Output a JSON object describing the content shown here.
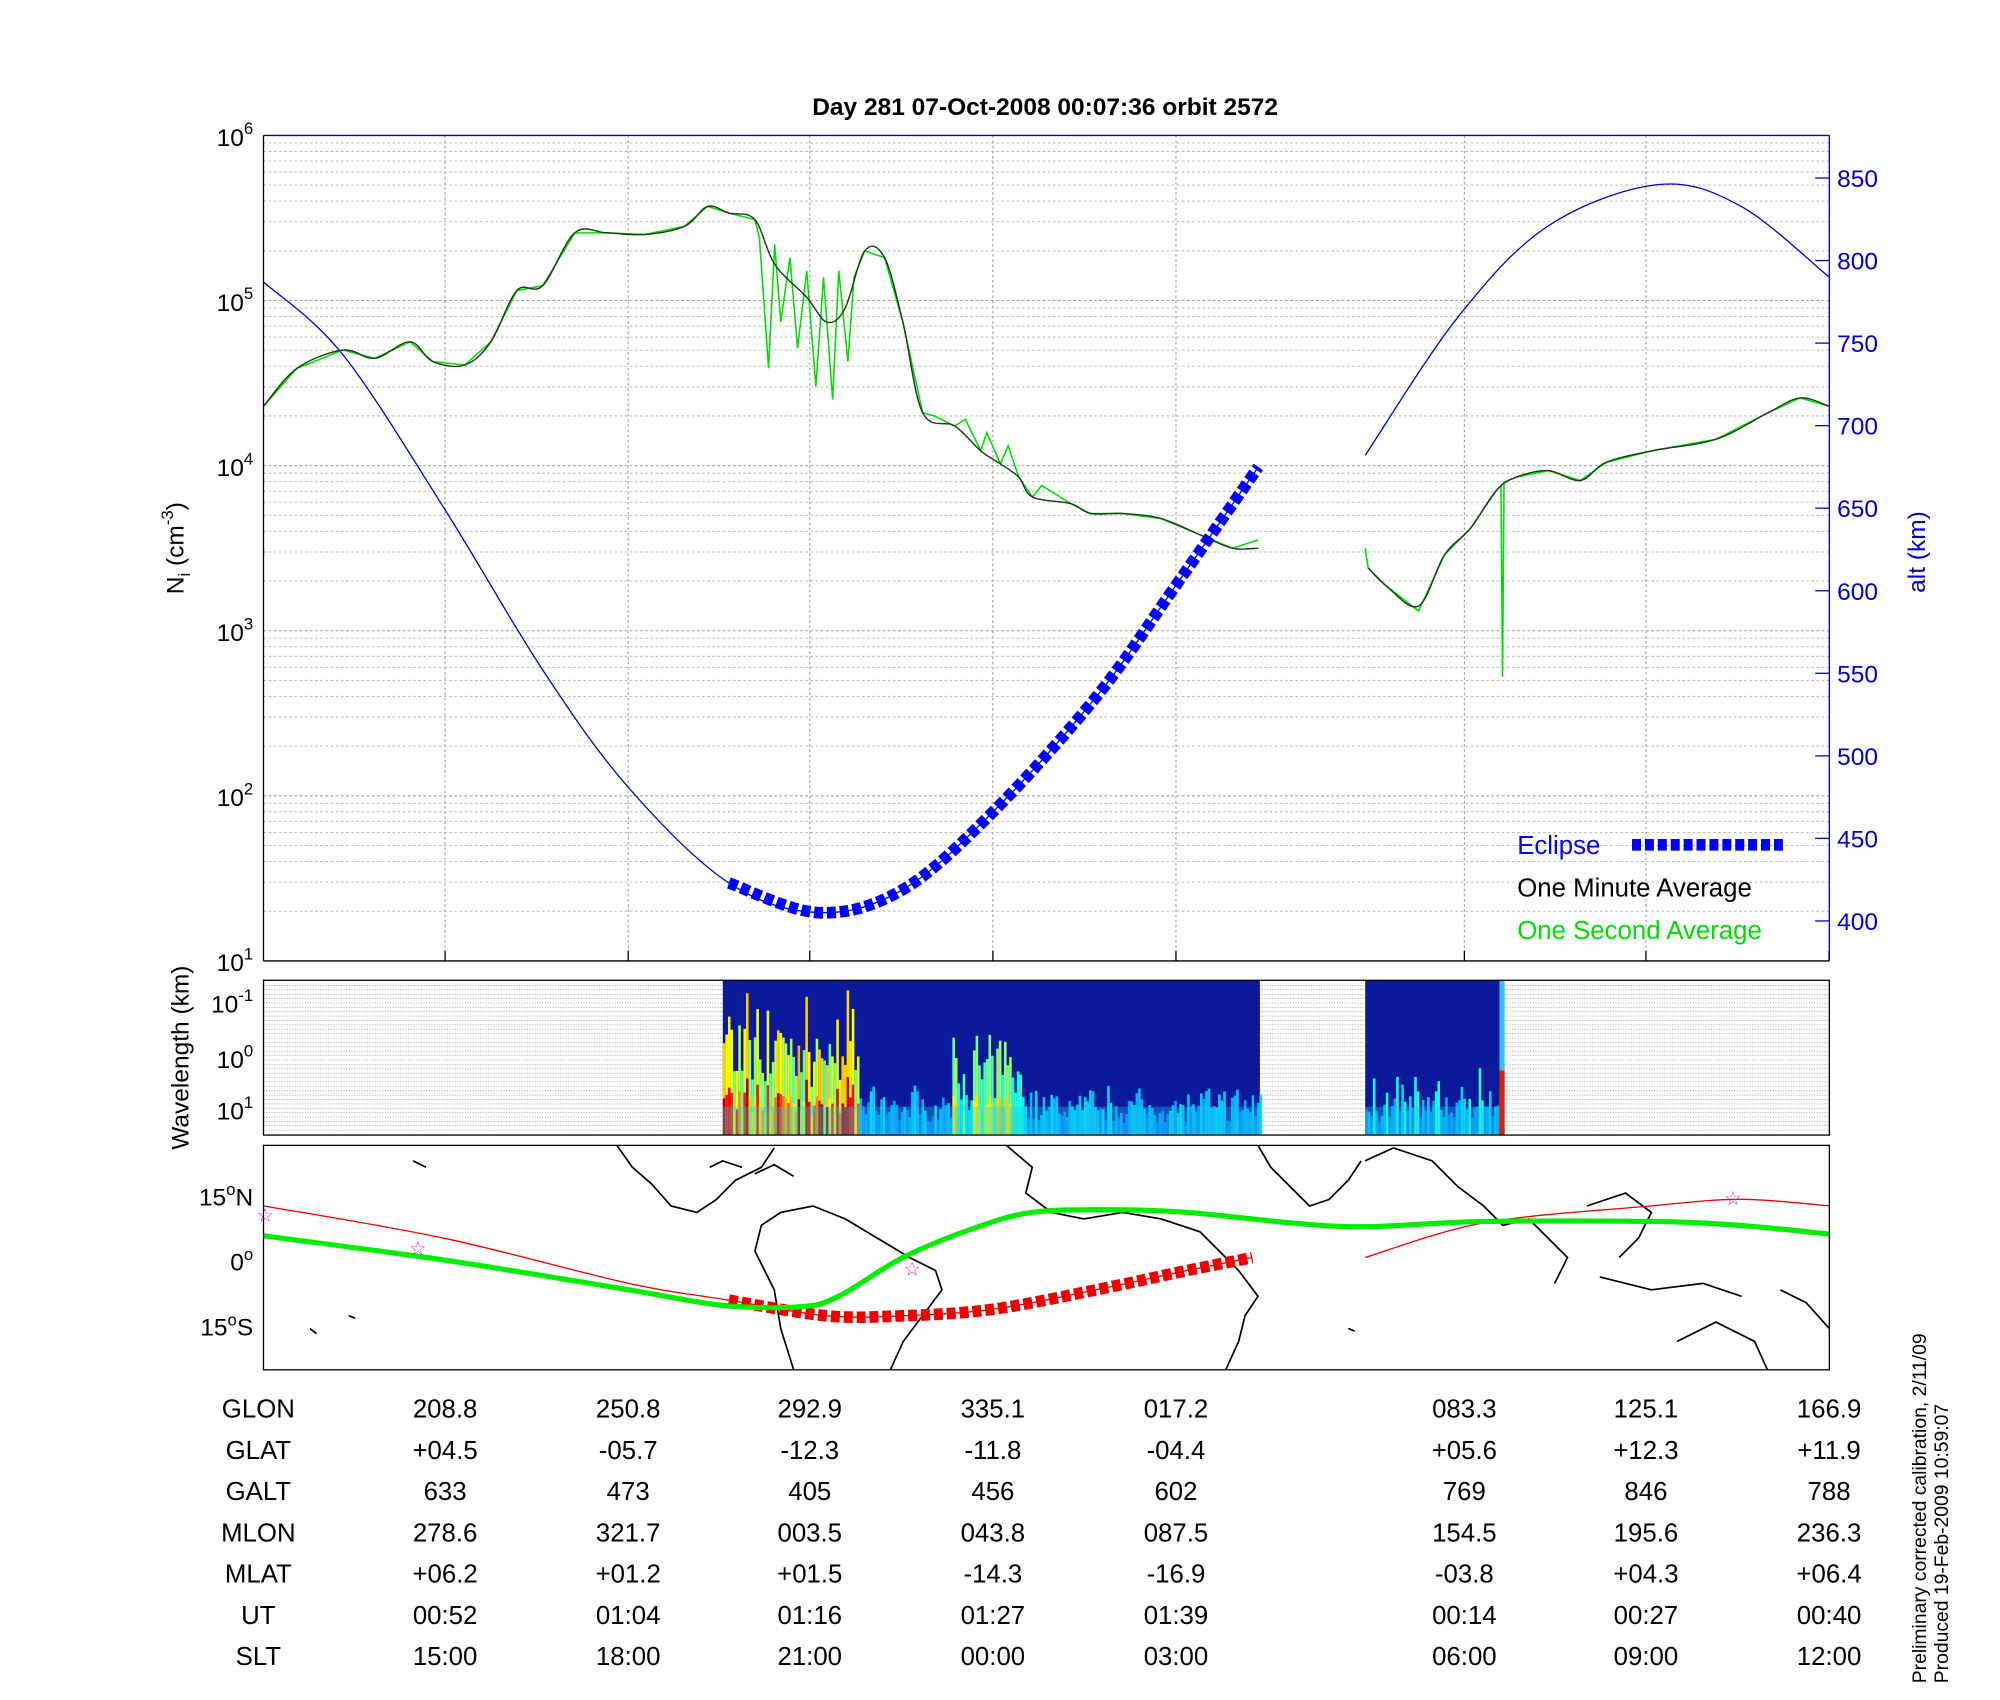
{
  "chart_data": [
    {
      "type": "line",
      "title": "Day 281  07-Oct-2008 00:07:36   orbit 2572",
      "xlabel": "",
      "ylabel": "Ni (cm-3)",
      "ylabel_main": "N",
      "ylabel_sub": "i",
      "ylabel_unit": " (cm",
      "ylabel_sup": "-3",
      "ylabel_close": ")",
      "y2label": "alt (km)",
      "x_units": "minutes elapsed",
      "xlim": [
        0,
        102.6
      ],
      "ylim_log10": [
        1,
        6
      ],
      "y_ticks": [
        {
          "base": "10",
          "exp": "1",
          "v": 1
        },
        {
          "base": "10",
          "exp": "2",
          "v": 2
        },
        {
          "base": "10",
          "exp": "3",
          "v": 3
        },
        {
          "base": "10",
          "exp": "4",
          "v": 4
        },
        {
          "base": "10",
          "exp": "5",
          "v": 5
        },
        {
          "base": "10",
          "exp": "6",
          "v": 6
        }
      ],
      "y2lim": [
        376,
        876
      ],
      "y2_ticks": [
        "400",
        "450",
        "500",
        "550",
        "600",
        "650",
        "700",
        "750",
        "800",
        "850"
      ],
      "x_grid_minutes": [
        11.9,
        23.9,
        35.8,
        47.8,
        59.8,
        78.7,
        90.6,
        102.6
      ],
      "grid": true,
      "legend_position": "bottom-right",
      "legend": [
        {
          "label": "Eclipse",
          "color": "#0000ff"
        },
        {
          "label": "One Minute Average",
          "color": "#000000"
        },
        {
          "label": "One Second Average",
          "color": "#00dd00"
        }
      ],
      "series": [
        {
          "name": "One Minute Average",
          "unit": "log10 cm-3",
          "color": "#1a3a1a",
          "segments": [
            [
              [
                0,
                4.36
              ],
              [
                2.2,
                4.59
              ],
              [
                5.2,
                4.7
              ],
              [
                7.3,
                4.65
              ],
              [
                9.6,
                4.75
              ],
              [
                11.1,
                4.63
              ],
              [
                13.2,
                4.61
              ],
              [
                14.9,
                4.75
              ],
              [
                16.6,
                5.06
              ],
              [
                18.3,
                5.09
              ],
              [
                20.4,
                5.41
              ],
              [
                22.5,
                5.41
              ],
              [
                25.0,
                5.4
              ],
              [
                27.6,
                5.45
              ],
              [
                29.1,
                5.57
              ],
              [
                30.5,
                5.53
              ],
              [
                32.2,
                5.49
              ],
              [
                33.5,
                5.22
              ],
              [
                35.6,
                5.02
              ],
              [
                36.9,
                4.87
              ],
              [
                38.1,
                4.95
              ],
              [
                39.4,
                5.3
              ],
              [
                40.7,
                5.26
              ],
              [
                41.9,
                4.87
              ],
              [
                43.2,
                4.32
              ],
              [
                45.3,
                4.24
              ],
              [
                47.0,
                4.09
              ],
              [
                48.3,
                4.01
              ],
              [
                49.5,
                3.93
              ],
              [
                50.4,
                3.81
              ],
              [
                52.9,
                3.77
              ],
              [
                54.2,
                3.71
              ],
              [
                56.3,
                3.71
              ],
              [
                58.8,
                3.68
              ],
              [
                61.4,
                3.58
              ],
              [
                63.5,
                3.5
              ],
              [
                65.2,
                3.5
              ]
            ],
            [
              [
                72.4,
                3.38
              ],
              [
                73.6,
                3.27
              ],
              [
                75.7,
                3.15
              ],
              [
                77.4,
                3.46
              ],
              [
                79.1,
                3.62
              ],
              [
                80.8,
                3.85
              ],
              [
                82.1,
                3.93
              ],
              [
                84.2,
                3.97
              ],
              [
                86.3,
                3.91
              ],
              [
                88.0,
                4.02
              ],
              [
                91.0,
                4.09
              ],
              [
                95.2,
                4.16
              ],
              [
                98.6,
                4.32
              ],
              [
                100.7,
                4.41
              ],
              [
                102.6,
                4.36
              ]
            ]
          ]
        },
        {
          "name": "One Second Average",
          "unit": "log10 cm-3",
          "color": "#00dd00",
          "segments": [
            [
              [
                0,
                4.36
              ],
              [
                2.2,
                4.59
              ],
              [
                5.2,
                4.7
              ],
              [
                7.3,
                4.65
              ],
              [
                9.6,
                4.75
              ],
              [
                11.1,
                4.63
              ],
              [
                13.2,
                4.61
              ],
              [
                14.9,
                4.75
              ],
              [
                16.6,
                5.06
              ],
              [
                18.3,
                5.09
              ],
              [
                20.4,
                5.41
              ],
              [
                22.5,
                5.41
              ],
              [
                25.0,
                5.4
              ],
              [
                27.6,
                5.45
              ],
              [
                29.1,
                5.57
              ],
              [
                30.5,
                5.53
              ],
              [
                32.2,
                5.49
              ],
              [
                32.5,
                5.38
              ],
              [
                33.1,
                4.59
              ],
              [
                33.5,
                5.34
              ],
              [
                33.9,
                4.87
              ],
              [
                34.5,
                5.26
              ],
              [
                35.0,
                4.71
              ],
              [
                35.6,
                5.18
              ],
              [
                36.2,
                4.48
              ],
              [
                36.7,
                5.14
              ],
              [
                37.3,
                4.4
              ],
              [
                37.7,
                5.18
              ],
              [
                38.3,
                4.63
              ],
              [
                38.7,
                5.14
              ],
              [
                39.4,
                5.3
              ],
              [
                40.7,
                5.26
              ],
              [
                41.9,
                4.87
              ],
              [
                43.2,
                4.32
              ],
              [
                44.0,
                4.3
              ],
              [
                45.3,
                4.24
              ],
              [
                46.0,
                4.28
              ],
              [
                47.0,
                4.09
              ],
              [
                47.4,
                4.2
              ],
              [
                48.3,
                4.01
              ],
              [
                48.8,
                4.12
              ],
              [
                49.5,
                3.93
              ],
              [
                50.4,
                3.81
              ],
              [
                51.0,
                3.88
              ],
              [
                52.9,
                3.77
              ],
              [
                54.2,
                3.71
              ],
              [
                56.3,
                3.71
              ],
              [
                58.8,
                3.68
              ],
              [
                61.4,
                3.58
              ],
              [
                63.5,
                3.5
              ],
              [
                65.2,
                3.55
              ]
            ],
            [
              [
                72.2,
                3.5
              ],
              [
                72.4,
                3.38
              ],
              [
                73.6,
                3.27
              ],
              [
                75.7,
                3.12
              ],
              [
                77.4,
                3.46
              ],
              [
                79.1,
                3.62
              ],
              [
                80.8,
                3.85
              ],
              [
                81.1,
                3.88
              ],
              [
                81.2,
                2.72
              ],
              [
                81.3,
                3.9
              ],
              [
                82.1,
                3.93
              ],
              [
                84.2,
                3.97
              ],
              [
                86.3,
                3.91
              ],
              [
                88.0,
                4.02
              ],
              [
                91.0,
                4.09
              ],
              [
                95.2,
                4.16
              ],
              [
                98.6,
                4.32
              ],
              [
                100.7,
                4.41
              ],
              [
                102.6,
                4.36
              ]
            ]
          ]
        },
        {
          "name": "Altitude",
          "unit": "km",
          "color": "#0000cc",
          "axis": "right",
          "segments": [
            [
              [
                0,
                787
              ],
              [
                5.2,
                743
              ],
              [
                11.9,
                649
              ],
              [
                18.3,
                552
              ],
              [
                23.9,
                481
              ],
              [
                30.5,
                423
              ],
              [
                36.4,
                405
              ],
              [
                41.9,
                419
              ],
              [
                47.8,
                466
              ],
              [
                54.6,
                536
              ],
              [
                59.7,
                602
              ],
              [
                65.2,
                675
              ]
            ],
            [
              [
                72.2,
                682
              ],
              [
                78.3,
                766
              ],
              [
                84.2,
                821
              ],
              [
                91.4,
                846
              ],
              [
                96.8,
                833
              ],
              [
                102.6,
                790
              ]
            ]
          ]
        },
        {
          "name": "Eclipse",
          "unit": "km",
          "color": "#0000ff",
          "axis": "right",
          "range_minutes": [
            30.5,
            65.2
          ]
        }
      ]
    },
    {
      "type": "heatmap",
      "ylabel": "Wavelength (km)",
      "y_ticks": [
        {
          "base": "10",
          "exp": "-1"
        },
        {
          "base": "10",
          "exp": "0"
        },
        {
          "base": "10",
          "exp": "1"
        }
      ],
      "data_ranges_minutes": [
        [
          30.1,
          65.3
        ],
        [
          72.2,
          81.2
        ]
      ],
      "colormap": "jet"
    },
    {
      "type": "line",
      "ylabel": "latitude",
      "y_ticks": [
        {
          "label": "15",
          "unit": "N",
          "v": 15
        },
        {
          "label": "0",
          "unit": "",
          "v": 0
        },
        {
          "label": "15",
          "unit": "S",
          "v": -15
        }
      ],
      "series": [
        {
          "name": "Magnetic equator",
          "color": "#00ee00",
          "points": [
            [
              0,
              5.6
            ],
            [
              11.9,
              0
            ],
            [
              23.9,
              -6.8
            ],
            [
              30.1,
              -10.4
            ],
            [
              35.2,
              -10.7
            ],
            [
              37.7,
              -8.3
            ],
            [
              41.9,
              0.6
            ],
            [
              46.6,
              7.4
            ],
            [
              50.4,
              11
            ],
            [
              55.5,
              11.6
            ],
            [
              60.5,
              11
            ],
            [
              67.3,
              8.6
            ],
            [
              72.2,
              7.7
            ],
            [
              80.0,
              8.9
            ],
            [
              91.0,
              8.9
            ],
            [
              96.8,
              8
            ],
            [
              102.6,
              6
            ]
          ]
        },
        {
          "name": "Satellite track",
          "color": "#ee0000",
          "segments": [
            [
              [
                0,
                12.5
              ],
              [
                11.9,
                5
              ],
              [
                23.9,
                -5.3
              ],
              [
                30.5,
                -9.2
              ],
              [
                36.9,
                -12.8
              ],
              [
                41.9,
                -12.8
              ],
              [
                47.8,
                -11.3
              ],
              [
                54.6,
                -6.8
              ],
              [
                60.5,
                -2.4
              ],
              [
                64.8,
                0.6
              ]
            ],
            [
              [
                72.2,
                0.6
              ],
              [
                80.0,
                8.6
              ],
              [
                91.0,
                12.5
              ],
              [
                96.8,
                14
              ],
              [
                102.6,
                12.5
              ]
            ]
          ],
          "eclipse_range_minutes": [
            30.5,
            64.8
          ]
        },
        {
          "name": "Markers",
          "color": "#cc33cc",
          "points": [
            [
              0.1,
              10.3
            ],
            [
              10.1,
              2.7
            ],
            [
              42.5,
              -2.1
            ],
            [
              96.3,
              14.2
            ]
          ]
        }
      ]
    }
  ],
  "table": {
    "columns_minutes": [
      11.9,
      23.9,
      35.8,
      47.8,
      59.8,
      78.7,
      90.6,
      102.6
    ],
    "rows": [
      {
        "label": "GLON",
        "values": [
          "208.8",
          "250.8",
          "292.9",
          "335.1",
          "017.2",
          "083.3",
          "125.1",
          "166.9"
        ]
      },
      {
        "label": "GLAT",
        "values": [
          "+04.5",
          "-05.7",
          "-12.3",
          "-11.8",
          "-04.4",
          "+05.6",
          "+12.3",
          "+11.9"
        ]
      },
      {
        "label": "GALT",
        "values": [
          "633",
          "473",
          "405",
          "456",
          "602",
          "769",
          "846",
          "788"
        ]
      },
      {
        "label": "MLON",
        "values": [
          "278.6",
          "321.7",
          "003.5",
          "043.8",
          "087.5",
          "154.5",
          "195.6",
          "236.3"
        ]
      },
      {
        "label": "MLAT",
        "values": [
          "+06.2",
          "+01.2",
          "+01.5",
          "-14.3",
          "-16.9",
          "-03.8",
          "+04.3",
          "+06.4"
        ]
      },
      {
        "label": "UT",
        "values": [
          "00:52",
          "01:04",
          "01:16",
          "01:27",
          "01:39",
          "00:14",
          "00:27",
          "00:40"
        ]
      },
      {
        "label": "SLT",
        "values": [
          "15:00",
          "18:00",
          "21:00",
          "00:00",
          "03:00",
          "06:00",
          "09:00",
          "12:00"
        ]
      }
    ]
  },
  "footer": {
    "line1": "Preliminary corrected calibration, 2/11/09",
    "line2": "Produced 19-Feb-2009 10:59:07"
  }
}
